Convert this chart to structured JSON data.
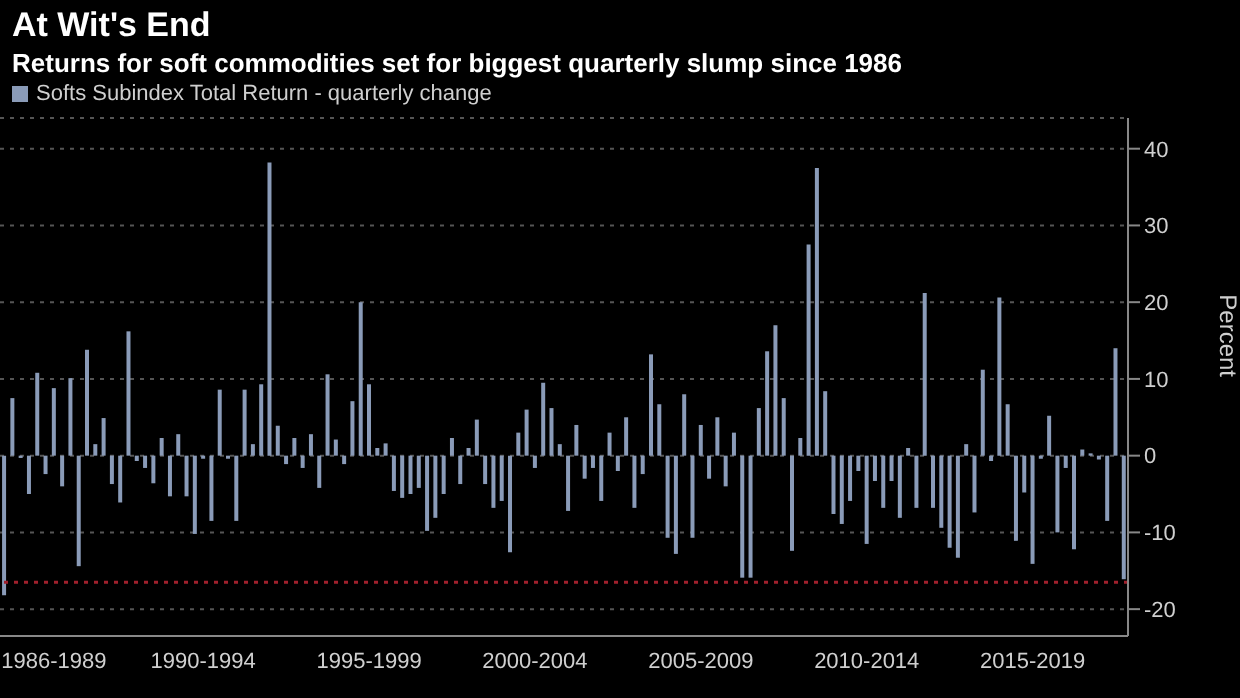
{
  "chart_data": {
    "type": "bar",
    "title": "At Wit's End",
    "subtitle": "Returns for soft commodities set for biggest quarterly slump since 1986",
    "ylabel": "Percent",
    "categories": [
      null,
      null,
      null,
      null,
      null,
      null,
      "1986-1989",
      null,
      null,
      null,
      null,
      null,
      null,
      null,
      null,
      null,
      null,
      null,
      null,
      null,
      null,
      null,
      null,
      null,
      "1990-1994",
      null,
      null,
      null,
      null,
      null,
      null,
      null,
      null,
      null,
      null,
      null,
      null,
      null,
      null,
      null,
      null,
      null,
      null,
      null,
      "1995-1999",
      null,
      null,
      null,
      null,
      null,
      null,
      null,
      null,
      null,
      null,
      null,
      null,
      null,
      null,
      null,
      null,
      null,
      null,
      null,
      "2000-2004",
      null,
      null,
      null,
      null,
      null,
      null,
      null,
      null,
      null,
      null,
      null,
      null,
      null,
      null,
      null,
      null,
      null,
      null,
      null,
      "2005-2009",
      null,
      null,
      null,
      null,
      null,
      null,
      null,
      null,
      null,
      null,
      null,
      null,
      null,
      null,
      null,
      null,
      null,
      null,
      null,
      "2010-2014",
      null,
      null,
      null,
      null,
      null,
      null,
      null,
      null,
      null,
      null,
      null,
      null,
      null,
      null,
      null,
      null,
      null,
      null,
      null,
      "2015-2019",
      null,
      null,
      null,
      null,
      null,
      null,
      null,
      null,
      null,
      null,
      null
    ],
    "series": [
      {
        "name": "Softs Subindex Total Return - quarterly change",
        "color": "#8a9bb8",
        "values": [
          -18.2,
          7.5,
          -0.3,
          -5.0,
          10.8,
          -2.4,
          8.8,
          -4.0,
          10.1,
          -14.4,
          13.8,
          1.5,
          4.9,
          -3.7,
          -6.1,
          16.2,
          -0.7,
          -1.6,
          -3.6,
          2.3,
          -5.3,
          2.8,
          -5.3,
          -10.2,
          -0.4,
          -8.5,
          8.6,
          -0.4,
          -8.5,
          8.6,
          1.5,
          9.3,
          38.2,
          3.9,
          -1.1,
          2.3,
          -1.6,
          2.8,
          -4.2,
          10.6,
          2.1,
          -1.1,
          7.1,
          20,
          9.3,
          1.0,
          1.6,
          -4.6,
          -5.5,
          -5.0,
          -4.2,
          -9.8,
          -8.1,
          -5.0,
          2.3,
          -3.7,
          1.0,
          4.7,
          -3.7,
          -6.8,
          -5.9,
          -12.6,
          3,
          6,
          -1.6,
          9.5,
          6.2,
          1.5,
          -7.2,
          4,
          -3,
          -1.6,
          -5.9,
          3,
          -2,
          5,
          -6.8,
          -2.4,
          13.2,
          6.7,
          -10.7,
          -12.8,
          8,
          -10.7,
          4,
          -3,
          5,
          -4,
          3,
          -15.9,
          -15.9,
          6.2,
          13.6,
          17,
          7.5,
          -12.4,
          2.3,
          27.5,
          37.5,
          8.4,
          -7.6,
          -8.9,
          -5.9,
          -2.0,
          -11.5,
          -3.3,
          -6.8,
          -3.3,
          -8.1,
          1.0,
          -6.8,
          21.2,
          -6.8,
          -9.4,
          -12.0,
          -13.3,
          1.5,
          -7.4,
          11.2,
          -0.7,
          20.6,
          6.7,
          -11.1,
          -4.8,
          -14.1,
          -0.4,
          5.2,
          -10.0,
          -1.6,
          -12.2,
          0.8,
          0.3,
          -0.5,
          -8.5,
          14.0,
          -16.1
        ]
      }
    ],
    "ylim": [
      -23.5,
      44
    ],
    "yticks": [
      -20,
      -10,
      0,
      10,
      20,
      30,
      40
    ],
    "grid": "y",
    "legend": "top left",
    "ref_lines": [
      {
        "axis": "y",
        "value": -16.5,
        "color": "#a0202c",
        "line_style": "dotted"
      }
    ]
  }
}
